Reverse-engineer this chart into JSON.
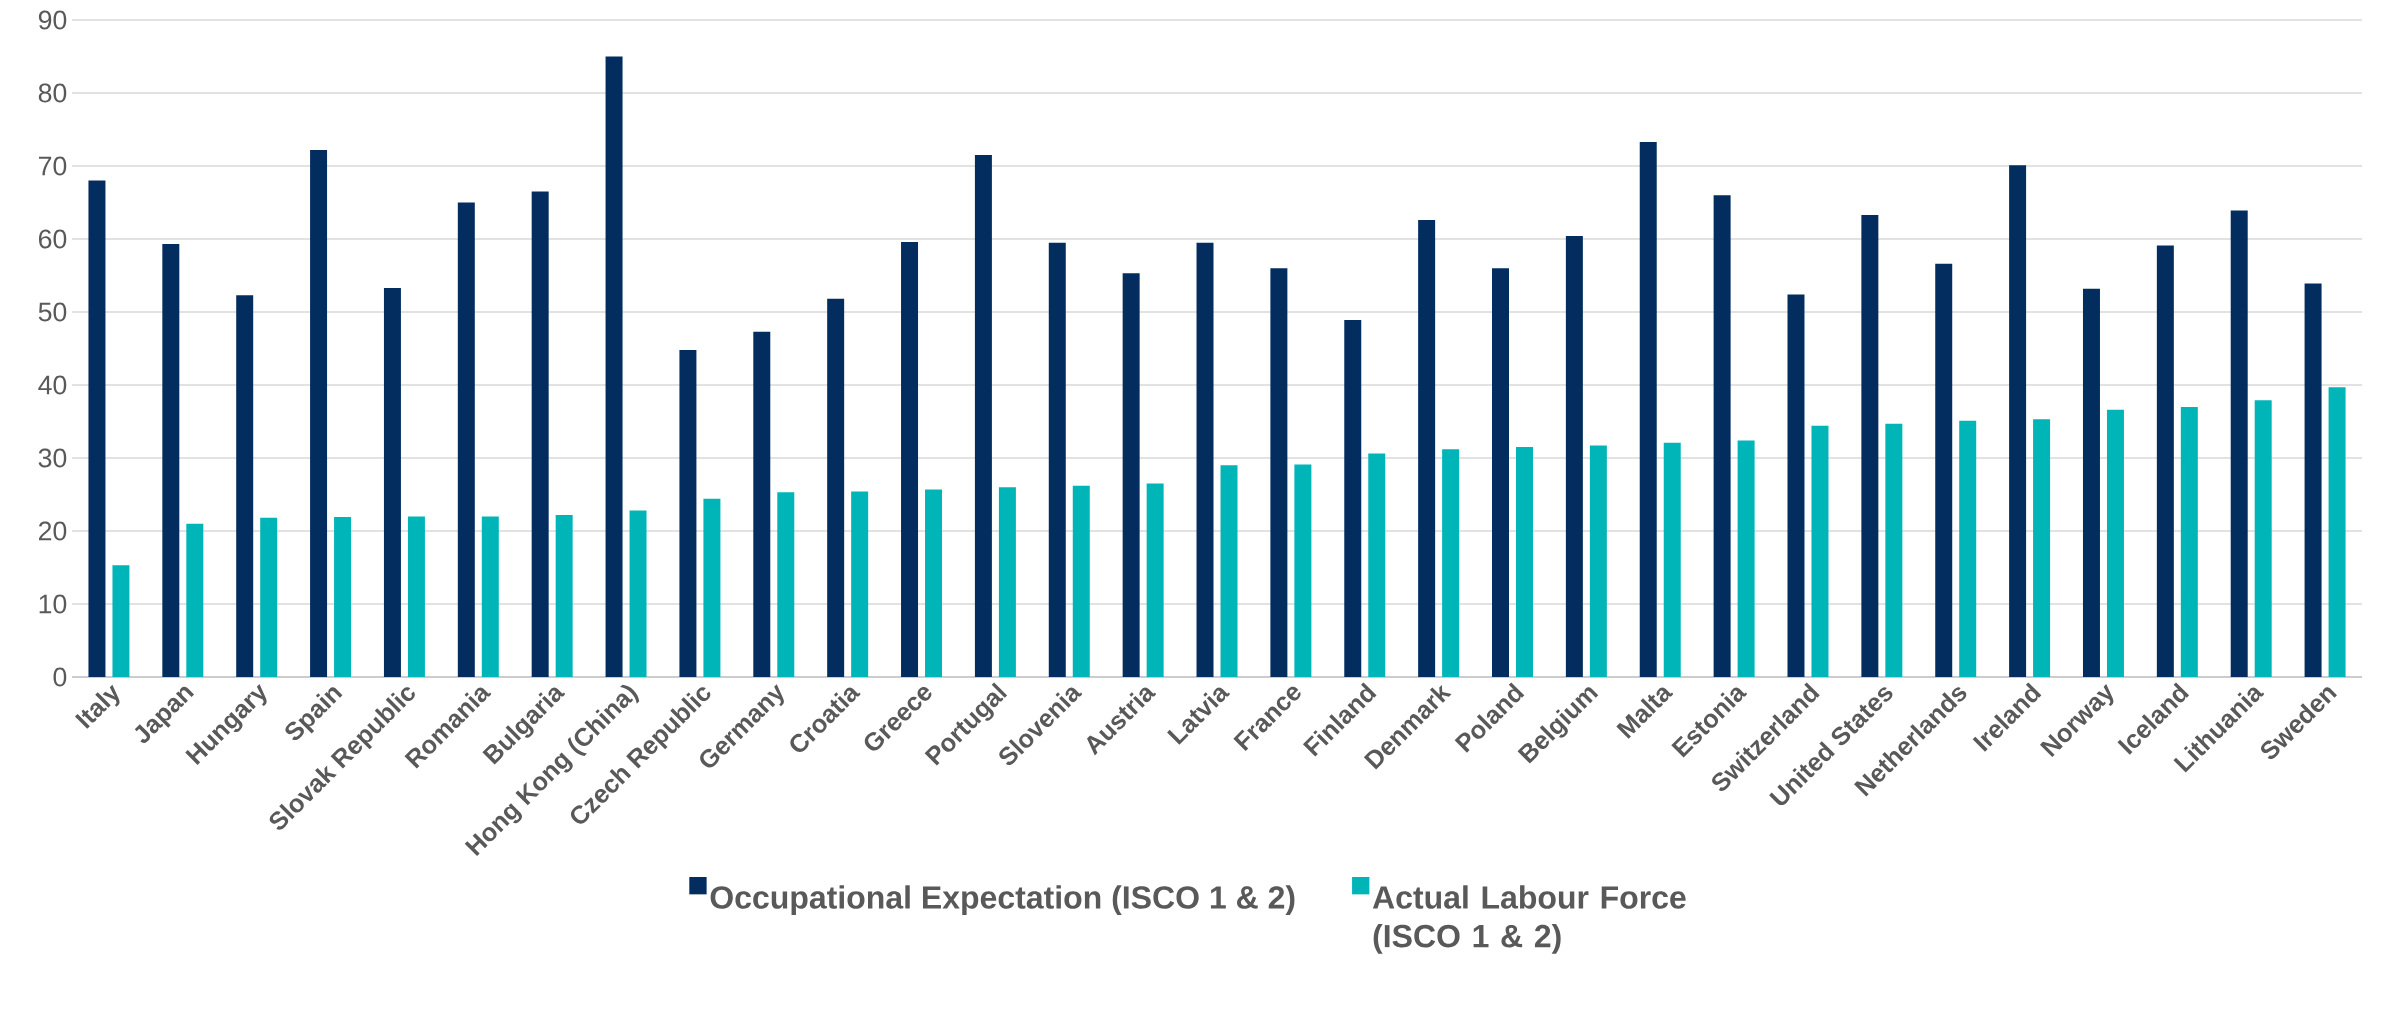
{
  "chart_data": {
    "type": "bar",
    "categories": [
      "Italy",
      "Japan",
      "Hungary",
      "Spain",
      "Slovak Republic",
      "Romania",
      "Bulgaria",
      "Hong Kong (China)",
      "Czech Republic",
      "Germany",
      "Croatia",
      "Greece",
      "Portugal",
      "Slovenia",
      "Austria",
      "Latvia",
      "France",
      "Finland",
      "Denmark",
      "Poland",
      "Belgium",
      "Malta",
      "Estonia",
      "Switzerland",
      "United States",
      "Netherlands",
      "Ireland",
      "Norway",
      "Iceland",
      "Lithuania",
      "Sweden"
    ],
    "series": [
      {
        "name": "Occupational Expectation (ISCO 1 & 2)",
        "color": "#032d5f",
        "values": [
          68.0,
          59.3,
          52.3,
          72.2,
          53.3,
          65.0,
          66.5,
          85.0,
          44.8,
          47.3,
          51.8,
          59.6,
          71.5,
          59.5,
          55.3,
          59.5,
          56.0,
          48.9,
          62.6,
          56.0,
          60.4,
          73.3,
          66.0,
          52.4,
          63.3,
          56.6,
          70.1,
          53.2,
          59.1,
          63.9,
          53.9
        ]
      },
      {
        "name": "Actual Labour Force (ISCO 1 & 2)",
        "color": "#00b5b8",
        "values": [
          15.3,
          21.0,
          21.8,
          21.9,
          22.0,
          22.0,
          22.2,
          22.8,
          24.4,
          25.3,
          25.4,
          25.7,
          26.0,
          26.2,
          26.5,
          29.0,
          29.1,
          30.6,
          31.2,
          31.5,
          31.7,
          32.1,
          32.4,
          34.4,
          34.7,
          35.1,
          35.3,
          36.6,
          37.0,
          37.9,
          39.7
        ]
      }
    ],
    "ylim": [
      0,
      90
    ],
    "yticks": [
      0,
      10,
      20,
      30,
      40,
      50,
      60,
      70,
      80,
      90
    ],
    "grid": "y",
    "legend": "bottom"
  }
}
